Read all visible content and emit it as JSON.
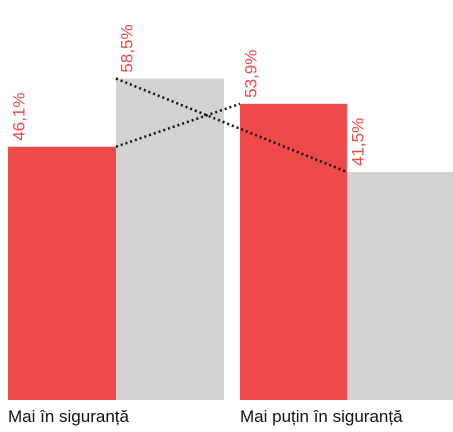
{
  "chart_data": {
    "type": "bar",
    "categories": [
      "Mai în siguranță",
      "Mai puțin în siguranță"
    ],
    "series": [
      {
        "color": "#ef4a4a",
        "values": [
          46.1,
          53.9
        ],
        "value_labels": [
          "46,1%",
          "53,9%"
        ]
      },
      {
        "color": "#d1d2d4",
        "values": [
          58.5,
          41.5
        ],
        "value_labels": [
          "58,5%",
          "41,5%"
        ]
      }
    ],
    "ylim": [
      0,
      72.8
    ]
  }
}
